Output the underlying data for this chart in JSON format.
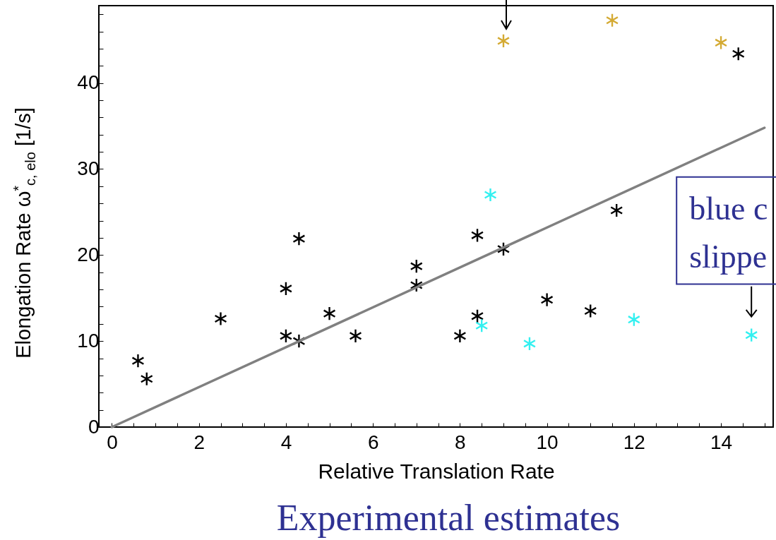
{
  "chart_data": {
    "type": "scatter",
    "xlabel": "Relative Translation Rate",
    "ylabel": "Elongation Rate ω$^{*}$$_{c, elo}$ [1/s]",
    "xlim": [
      -0.3,
      15.2
    ],
    "ylim": [
      0,
      49
    ],
    "xticks": [
      0,
      {
        "value": 0.5,
        "label": null
      },
      {
        "value": 1,
        "label": null
      },
      {
        "value": 1.5,
        "label": null
      },
      2,
      {
        "value": 2.5,
        "label": null
      },
      {
        "value": 3,
        "label": null
      },
      {
        "value": 3.5,
        "label": null
      },
      4,
      {
        "value": 4.5,
        "label": null
      },
      {
        "value": 5,
        "label": null
      },
      {
        "value": 5.5,
        "label": null
      },
      6,
      {
        "value": 6.5,
        "label": null
      },
      {
        "value": 7,
        "label": null
      },
      {
        "value": 7.5,
        "label": null
      },
      8,
      {
        "value": 8.5,
        "label": null
      },
      {
        "value": 9,
        "label": null
      },
      {
        "value": 9.5,
        "label": null
      },
      10,
      {
        "value": 10.5,
        "label": null
      },
      {
        "value": 11,
        "label": null
      },
      {
        "value": 11.5,
        "label": null
      },
      12,
      {
        "value": 12.5,
        "label": null
      },
      {
        "value": 13,
        "label": null
      },
      {
        "value": 13.5,
        "label": null
      },
      14,
      {
        "value": 14.5,
        "label": null
      },
      {
        "value": 15,
        "label": null
      }
    ],
    "yticks": [
      0,
      {
        "value": 2,
        "label": null
      },
      {
        "value": 4,
        "label": null
      },
      {
        "value": 6,
        "label": null
      },
      {
        "value": 8,
        "label": null
      },
      10,
      {
        "value": 12,
        "label": null
      },
      {
        "value": 14,
        "label": null
      },
      {
        "value": 16,
        "label": null
      },
      {
        "value": 18,
        "label": null
      },
      20,
      {
        "value": 22,
        "label": null
      },
      {
        "value": 24,
        "label": null
      },
      {
        "value": 26,
        "label": null
      },
      {
        "value": 28,
        "label": null
      },
      30,
      {
        "value": 32,
        "label": null
      },
      {
        "value": 34,
        "label": null
      },
      {
        "value": 36,
        "label": null
      },
      {
        "value": 38,
        "label": null
      },
      40,
      {
        "value": 42,
        "label": null
      },
      {
        "value": 44,
        "label": null
      },
      {
        "value": 46,
        "label": null
      },
      {
        "value": 48,
        "label": null
      }
    ],
    "grid": false,
    "marker": "cross",
    "series": [
      {
        "color": "#000000",
        "x": [
          0.6,
          0.8,
          2.5,
          4.3,
          4.0,
          4.0,
          4.3,
          5.0,
          5.6,
          7.0,
          7.0,
          8.0,
          8.4,
          8.4,
          9.0,
          10.0,
          11.0,
          11.6,
          14.4
        ],
        "values": [
          7.7,
          5.6,
          12.6,
          21.9,
          16.1,
          10.6,
          10.0,
          13.2,
          10.6,
          18.7,
          16.5,
          10.6,
          22.3,
          12.9,
          20.7,
          14.8,
          13.5,
          25.2,
          43.4
        ]
      },
      {
        "color": "#33f0f0",
        "x": [
          8.7,
          8.5,
          9.6,
          12.0,
          14.7
        ],
        "values": [
          27.0,
          11.8,
          9.7,
          12.5,
          10.7
        ]
      },
      {
        "color": "#d4aa33",
        "x": [
          9.0,
          11.5,
          14.0
        ],
        "values": [
          44.9,
          47.3,
          44.7
        ]
      },
      {
        "type": "line",
        "color": "#808080",
        "marker": "none",
        "line_style": "solid",
        "x": [
          0,
          15
        ],
        "values": [
          0,
          34.8
        ]
      }
    ],
    "annotations": [
      {
        "text": "blue c\nslippe",
        "x": 14.7,
        "y": 10.7
      },
      "Experimental estimates"
    ]
  }
}
